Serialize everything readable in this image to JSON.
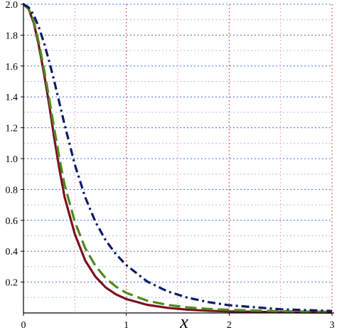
{
  "chart_data": {
    "type": "line",
    "xlabel": "x",
    "ylabel": "",
    "xlim": [
      0,
      3
    ],
    "ylim": [
      0,
      2.0
    ],
    "x_ticks": [
      0,
      1,
      2,
      3
    ],
    "x_tick_labels": [
      "0",
      "1",
      "2",
      "3"
    ],
    "x_minor_ticks": [
      0.5,
      1.5,
      2.5
    ],
    "y_ticks": [
      0.2,
      0.4,
      0.6,
      0.8,
      1.0,
      1.2,
      1.4,
      1.6,
      1.8,
      2.0
    ],
    "y_tick_labels": [
      "0.2",
      "0.4",
      "0.6",
      "0.8",
      "1.0",
      "1.2",
      "1.4",
      "1.6",
      "1.8",
      "2.0"
    ],
    "y_minor_ticks": [
      0.1,
      0.3,
      0.5,
      0.7,
      0.9,
      1.1,
      1.3,
      1.5,
      1.7,
      1.9
    ],
    "grid": true,
    "colors": {
      "major_vertical_grid": "#e8383d",
      "minor_vertical_grid": "#f4a6b0",
      "major_horizontal_grid": "#3a6fd8",
      "minor_horizontal_grid": "#a9c2ee",
      "axes": "#000000"
    },
    "series": [
      {
        "color": "#7b1020",
        "dash": "solid",
        "x": [
          0,
          0.05,
          0.1,
          0.15,
          0.2,
          0.25,
          0.3,
          0.35,
          0.4,
          0.5,
          0.6,
          0.7,
          0.8,
          0.9,
          1.0,
          1.2,
          1.4,
          1.6,
          1.8,
          2.0,
          2.5,
          3.0
        ],
        "y": [
          2.0,
          1.97,
          1.88,
          1.73,
          1.55,
          1.35,
          1.13,
          0.93,
          0.75,
          0.51,
          0.34,
          0.235,
          0.165,
          0.12,
          0.09,
          0.053,
          0.033,
          0.021,
          0.014,
          0.01,
          0.005,
          0.003
        ]
      },
      {
        "color": "#4e8a1c",
        "dash": "long-dash",
        "x": [
          0,
          0.05,
          0.1,
          0.15,
          0.2,
          0.25,
          0.3,
          0.35,
          0.4,
          0.5,
          0.6,
          0.7,
          0.8,
          0.9,
          1.0,
          1.2,
          1.4,
          1.6,
          1.8,
          2.0,
          2.5,
          3.0
        ],
        "y": [
          2.0,
          1.97,
          1.89,
          1.75,
          1.58,
          1.39,
          1.19,
          1.0,
          0.83,
          0.59,
          0.42,
          0.305,
          0.225,
          0.17,
          0.13,
          0.08,
          0.052,
          0.036,
          0.026,
          0.02,
          0.011,
          0.007
        ]
      },
      {
        "color": "#0d1a66",
        "dash": "dash-dot",
        "x": [
          0,
          0.05,
          0.1,
          0.15,
          0.2,
          0.25,
          0.3,
          0.35,
          0.4,
          0.5,
          0.6,
          0.7,
          0.8,
          0.9,
          1.0,
          1.2,
          1.4,
          1.6,
          1.8,
          2.0,
          2.5,
          3.0
        ],
        "y": [
          2.0,
          1.98,
          1.93,
          1.85,
          1.75,
          1.63,
          1.5,
          1.36,
          1.22,
          0.96,
          0.75,
          0.59,
          0.47,
          0.38,
          0.31,
          0.205,
          0.14,
          0.098,
          0.07,
          0.05,
          0.024,
          0.013
        ]
      }
    ]
  }
}
